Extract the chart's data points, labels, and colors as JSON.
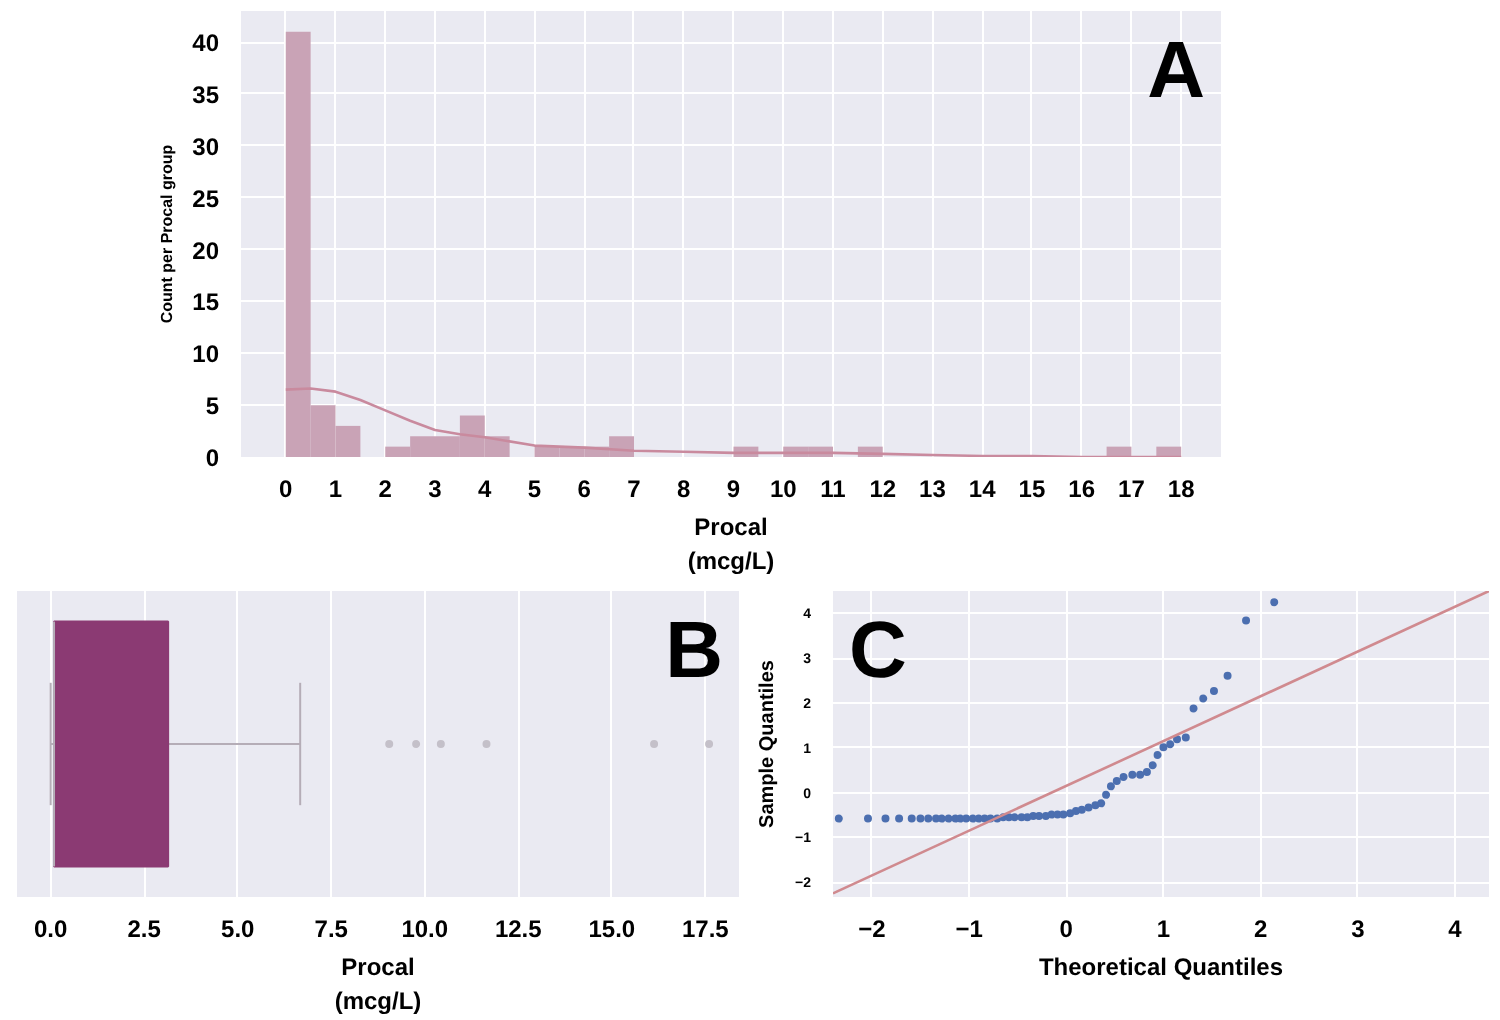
{
  "chart_data": [
    {
      "type": "histogram",
      "xlabel": "Procal\n(mcg/L)",
      "ylabel": "Count per Procal group",
      "annotations": [
        "A"
      ],
      "bins": [
        0,
        0.5,
        1,
        1.5,
        2,
        2.5,
        3,
        3.5,
        4,
        4.5,
        5,
        5.5,
        6,
        6.5,
        7,
        7.5,
        8,
        8.5,
        9,
        9.5,
        10,
        10.5,
        11,
        11.5,
        12,
        12.5,
        13,
        13.5,
        14,
        14.5,
        15,
        15.5,
        16,
        16.5,
        17,
        17.5,
        18
      ],
      "series": [
        {
          "type": "histogram",
          "color": "#c9a3b6",
          "values": [
            41,
            5,
            3,
            0,
            1,
            2,
            2,
            4,
            2,
            0,
            1,
            1,
            1,
            2,
            0,
            0,
            0,
            0,
            1,
            0,
            1,
            1,
            0,
            1,
            0,
            0,
            0,
            0,
            0,
            0,
            0,
            0,
            0,
            1,
            0,
            1
          ]
        },
        {
          "type": "line",
          "color": "#c98a9e",
          "x": [
            0,
            0.5,
            1,
            1.5,
            2,
            2.5,
            3,
            3.5,
            4,
            5,
            6,
            7,
            8,
            9,
            10,
            11,
            12,
            13,
            14,
            15,
            16,
            17,
            18
          ],
          "values": [
            6.5,
            6.6,
            6.3,
            5.5,
            4.5,
            3.5,
            2.6,
            2.2,
            1.9,
            1.1,
            0.9,
            0.6,
            0.5,
            0.4,
            0.4,
            0.4,
            0.3,
            0.2,
            0.1,
            0.1,
            0,
            0,
            0
          ]
        }
      ],
      "xlim": [
        -0.9,
        18.8
      ],
      "ylim": [
        0,
        43
      ],
      "xticks": [
        0,
        1,
        2,
        3,
        4,
        5,
        6,
        7,
        8,
        9,
        10,
        11,
        12,
        13,
        14,
        15,
        16,
        17,
        18
      ],
      "yticks": [
        0,
        5,
        10,
        15,
        20,
        25,
        30,
        35,
        40
      ],
      "grid": true
    },
    {
      "type": "box",
      "orientation": "horizontal",
      "xlabel": "Procal\n(mcg/L)",
      "annotations": [
        "B"
      ],
      "categories": [
        null
      ],
      "color": "#8b3a73",
      "boxes": [
        {
          "low": 0.0,
          "q1": 0.09,
          "median": 0.09,
          "q3": 3.14,
          "high": 6.67,
          "outliers": [
            9.05,
            9.77,
            10.43,
            11.65,
            16.13,
            17.6
          ]
        }
      ],
      "xlim": [
        -0.9,
        18.4
      ],
      "xticks": [
        {
          "value": 0,
          "label": "0.0"
        },
        {
          "value": 2.5,
          "label": "2.5"
        },
        {
          "value": 5,
          "label": "5.0"
        },
        {
          "value": 7.5,
          "label": "7.5"
        },
        {
          "value": 10,
          "label": "10.0"
        },
        {
          "value": 12.5,
          "label": "12.5"
        },
        {
          "value": 15,
          "label": "15.0"
        },
        {
          "value": 17.5,
          "label": "17.5"
        }
      ],
      "tick_labels": "x",
      "grid": "x"
    },
    {
      "type": "scatter",
      "xlabel": "Theoretical Quantiles",
      "ylabel": "Sample Quantiles",
      "annotations": [
        "C"
      ],
      "series": [
        {
          "type": "scatter",
          "marker": "circle",
          "color": "#4c6fb0",
          "x": [
            -2.34,
            -2.04,
            -1.86,
            -1.72,
            -1.59,
            -1.5,
            -1.42,
            -1.34,
            -1.28,
            -1.21,
            -1.14,
            -1.09,
            -1.03,
            -0.96,
            -0.9,
            -0.84,
            -0.78,
            -0.71,
            -0.65,
            -0.59,
            -0.53,
            -0.46,
            -0.4,
            -0.34,
            -0.28,
            -0.21,
            -0.15,
            -0.09,
            -0.03,
            0.04,
            0.1,
            0.16,
            0.23,
            0.3,
            0.36,
            0.41,
            0.46,
            0.52,
            0.59,
            0.68,
            0.76,
            0.83,
            0.89,
            0.94,
            1.0,
            1.07,
            1.14,
            1.23,
            1.31,
            1.41,
            1.52,
            1.66,
            1.85,
            2.14
          ],
          "values": [
            -0.58,
            -0.58,
            -0.58,
            -0.58,
            -0.58,
            -0.58,
            -0.58,
            -0.58,
            -0.58,
            -0.58,
            -0.58,
            -0.58,
            -0.58,
            -0.58,
            -0.58,
            -0.58,
            -0.58,
            -0.58,
            -0.55,
            -0.55,
            -0.55,
            -0.55,
            -0.55,
            -0.52,
            -0.52,
            -0.52,
            -0.49,
            -0.49,
            -0.49,
            -0.46,
            -0.41,
            -0.38,
            -0.33,
            -0.28,
            -0.24,
            -0.05,
            0.14,
            0.26,
            0.35,
            0.4,
            0.4,
            0.46,
            0.61,
            0.84,
            1.01,
            1.08,
            1.19,
            1.23,
            1.88,
            2.1,
            2.27,
            2.61,
            3.84,
            4.25
          ]
        },
        {
          "type": "line",
          "color": "#d08a8f",
          "x": [
            -2.4,
            4.35
          ],
          "values": [
            -2.25,
            4.5
          ]
        }
      ],
      "xlim": [
        -2.4,
        4.35
      ],
      "ylim": [
        -2.33,
        4.5
      ],
      "xticks": [
        -2,
        -1,
        0,
        1,
        2,
        3,
        4
      ],
      "yticks": [
        -2,
        -1,
        0,
        1,
        2,
        3,
        4
      ],
      "grid": true
    }
  ]
}
